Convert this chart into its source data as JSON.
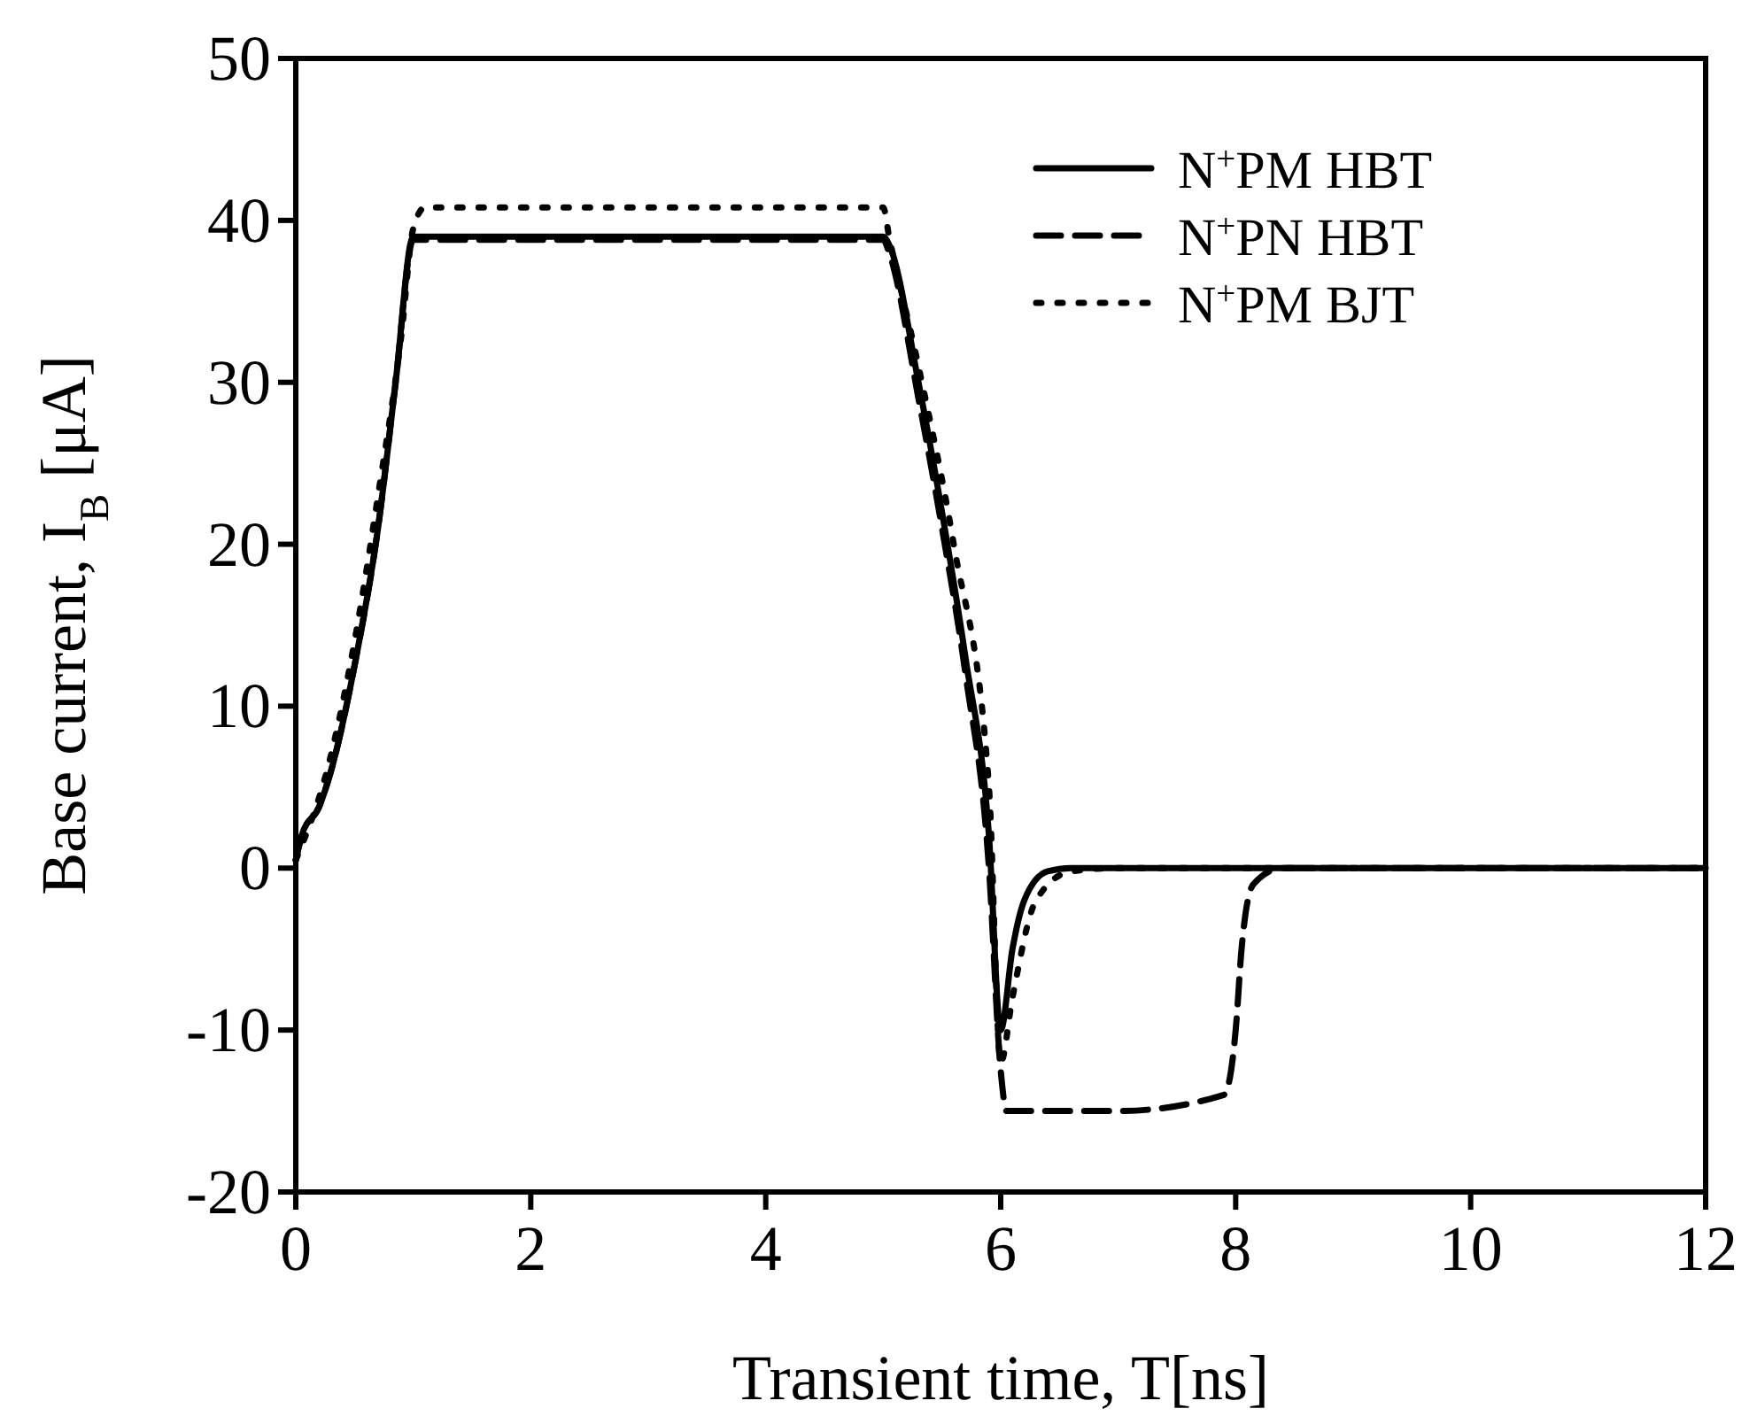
{
  "chart_data": {
    "type": "line",
    "xlabel": "Transient time, T[ns]",
    "ylabel": "Base current, I$_{B}$ [μA]",
    "xlim": [
      0,
      12
    ],
    "ylim": [
      -20,
      50
    ],
    "xticks": [
      0,
      2,
      4,
      6,
      8,
      10,
      12
    ],
    "yticks": [
      -20,
      -10,
      0,
      10,
      20,
      30,
      40,
      50
    ],
    "legend": "top right",
    "grid": false,
    "series": [
      {
        "name": "N$^{+}$PM HBT",
        "color": "#000000",
        "line_style": "solid",
        "x": [
          0,
          0.05,
          0.2,
          0.3,
          0.5,
          0.7,
          0.85,
          1.0,
          2,
          4,
          5.0,
          5.05,
          5.3,
          5.5,
          5.7,
          5.9,
          6.0,
          6.1,
          6.2,
          6.4,
          6.6,
          12
        ],
        "values": [
          0.5,
          2,
          3.8,
          6,
          12.5,
          21,
          30,
          39,
          39,
          39,
          39,
          38.5,
          30,
          22,
          13,
          2,
          -10,
          -5,
          -2,
          -0.2,
          0,
          0
        ]
      },
      {
        "name": "N$^{+}$PN HBT",
        "color": "#000000",
        "line_style": "dashed",
        "x": [
          0,
          0.05,
          0.2,
          0.3,
          0.5,
          0.7,
          0.85,
          1.0,
          2,
          4,
          5.0,
          5.05,
          5.3,
          5.5,
          5.7,
          5.9,
          6.0,
          6.05,
          7,
          7.9,
          8.0,
          8.05,
          8.15,
          8.4,
          12
        ],
        "values": [
          0.5,
          2,
          3.8,
          6,
          12.5,
          21,
          30,
          38.8,
          38.8,
          38.8,
          38.8,
          38,
          29,
          21,
          12,
          0,
          -12.5,
          -15,
          -15,
          -14,
          -10,
          -5,
          -1,
          0,
          0
        ]
      },
      {
        "name": "N$^{+}$PM BJT",
        "color": "#000000",
        "line_style": "dotted",
        "x": [
          0,
          0.3,
          0.5,
          0.7,
          0.9,
          1.0,
          1.1,
          5,
          5.05,
          5.3,
          5.6,
          5.9,
          6.0,
          6.1,
          6.3,
          6.6,
          7,
          12
        ],
        "values": [
          0.5,
          7,
          14,
          23,
          33,
          39.5,
          40.8,
          40.8,
          39,
          31,
          20,
          5,
          -12,
          -8,
          -2,
          -0.2,
          0,
          0
        ]
      }
    ]
  }
}
